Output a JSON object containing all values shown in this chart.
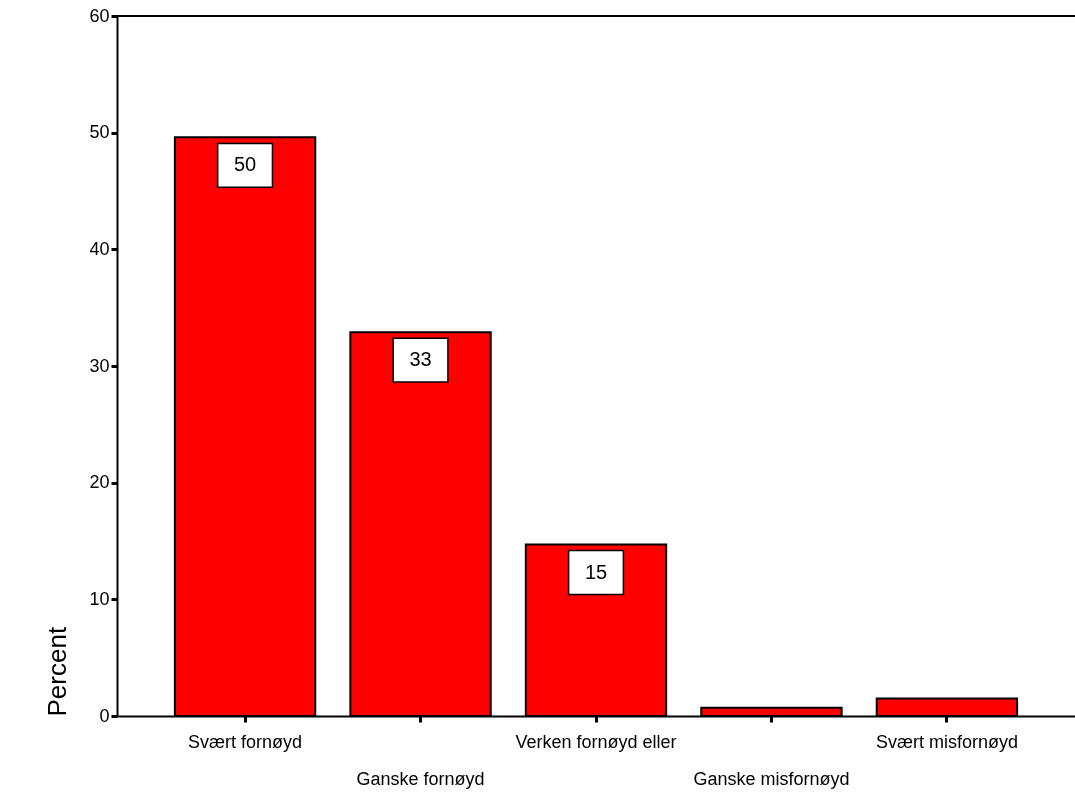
{
  "chart_data": {
    "type": "bar",
    "ylabel": "Percent",
    "categories": [
      "Svært fornøyd",
      "Ganske fornøyd",
      "Verken fornøyd eller",
      "Ganske misfornøyd",
      "Svært misfornøyd"
    ],
    "values": [
      49.6,
      32.9,
      14.7,
      0.7,
      1.5
    ],
    "value_labels": [
      "50",
      "33",
      "15",
      null,
      null
    ],
    "color": "#ff0000",
    "ylim": [
      0,
      60
    ],
    "yticks": [
      0,
      10,
      20,
      30,
      40,
      50,
      60
    ],
    "grid": false
  }
}
